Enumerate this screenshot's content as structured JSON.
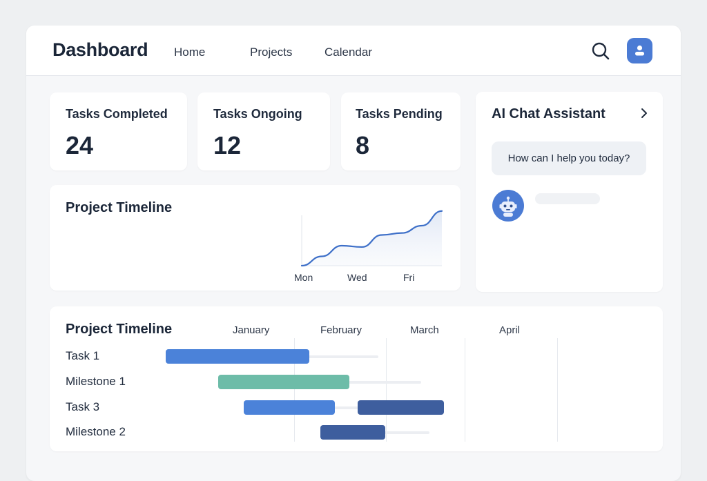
{
  "header": {
    "title": "Dashboard",
    "nav": [
      "Home",
      "Projects",
      "Calendar"
    ],
    "icons": {
      "search": "search-icon",
      "user": "user-icon"
    }
  },
  "stats": [
    {
      "label": "Tasks Completed",
      "value": "24"
    },
    {
      "label": "Tasks Ongoing",
      "value": "12"
    },
    {
      "label": "Tasks Pending",
      "value": "8"
    }
  ],
  "trend": {
    "title": "Project Timeline",
    "chart_data": {
      "type": "area",
      "x_ticks": [
        "Mon",
        "Wed",
        "Fri"
      ],
      "values": [
        0,
        14,
        30,
        28,
        46,
        49,
        60,
        82
      ],
      "ylim": [
        0,
        90
      ]
    }
  },
  "chat": {
    "title": "AI Chat Assistant",
    "message": "How can I help you today?"
  },
  "gantt": {
    "title": "Project Timeline",
    "months": [
      "January",
      "February",
      "March",
      "April"
    ],
    "tasks": [
      {
        "label": "Task 1",
        "start": 0.0,
        "end": 1.73,
        "track_end": 2.57,
        "color": "#4b82d9"
      },
      {
        "label": "Milestone 1",
        "start": 0.63,
        "end": 2.22,
        "track_end": 3.08,
        "color": "#6dbca8"
      },
      {
        "label": "Task 3",
        "start": 0.94,
        "end": 2.04,
        "start2": 2.32,
        "end2": 3.36,
        "track_end": 3.36,
        "color": "#4b82d9",
        "color2": "#3e5e9e"
      },
      {
        "label": "Milestone 2",
        "start": 1.87,
        "end": 2.65,
        "track_end": 3.18,
        "color": "#3e5e9e"
      }
    ]
  },
  "colors": {
    "accent": "#4b7bd4",
    "teal": "#6dbca8",
    "navy": "#3e5e9e"
  }
}
